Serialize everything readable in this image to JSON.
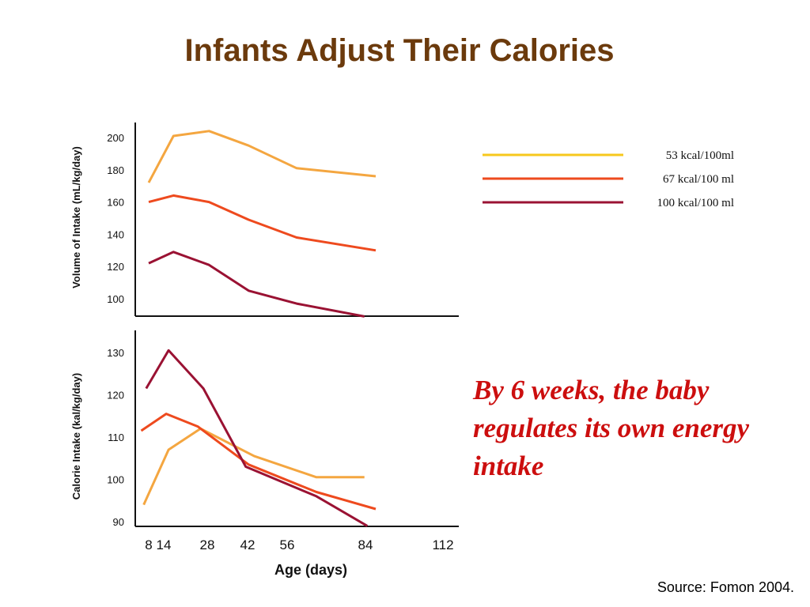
{
  "slide": {
    "title": "Infants Adjust Their Calories",
    "callout": "By 6 weeks, the baby regulates its own energy intake",
    "source": "Source: Fomon 2004."
  },
  "colors": {
    "title": "#6b3a0c",
    "callout": "#cc0e0e",
    "series_53": "#f4a640",
    "series_67": "#ee4a1e",
    "series_100": "#9a1233",
    "legend_53": "#f7c81c"
  },
  "legend": [
    {
      "label": "53 kcal/100ml",
      "color": "#f7c81c"
    },
    {
      "label": "67 kcal/100 ml",
      "color": "#ee4a1e"
    },
    {
      "label": "100 kcal/100 ml",
      "color": "#9a1233"
    }
  ],
  "x_axis": {
    "label": "Age (days)",
    "ticks": [
      "8",
      "14",
      "28",
      "42",
      "56",
      "84",
      "112"
    ]
  },
  "chart_data": [
    {
      "type": "line",
      "title": "",
      "ylabel": "Volume of Intake (mL/kg/day)",
      "yticks": [
        200,
        180,
        160,
        140,
        120,
        100
      ],
      "ylim": [
        90,
        210
      ],
      "grid": false,
      "series": [
        {
          "name": "53 kcal/100ml",
          "color": "#f4a640",
          "points": [
            [
              8,
              172
            ],
            [
              18,
              201
            ],
            [
              32,
              204
            ],
            [
              46,
              195
            ],
            [
              63,
              181
            ],
            [
              91,
              176
            ]
          ]
        },
        {
          "name": "67 kcal/100 ml",
          "color": "#ee4a1e",
          "points": [
            [
              8,
              160
            ],
            [
              18,
              164
            ],
            [
              32,
              160
            ],
            [
              46,
              149
            ],
            [
              63,
              138
            ],
            [
              91,
              130
            ]
          ]
        },
        {
          "name": "100 kcal/100 ml",
          "color": "#9a1233",
          "points": [
            [
              8,
              122
            ],
            [
              18,
              129
            ],
            [
              32,
              121
            ],
            [
              46,
              105
            ],
            [
              63,
              97
            ],
            [
              87,
              89
            ]
          ]
        }
      ]
    },
    {
      "type": "line",
      "title": "",
      "ylabel": "Calorie Intake (kal/kg/day)",
      "yticks": [
        130,
        120,
        110,
        100,
        90
      ],
      "ylim": [
        88,
        133
      ],
      "grid": false,
      "series": [
        {
          "name": "53 kcal/100ml",
          "color": "#f4a640",
          "points": [
            [
              6,
              94
            ],
            [
              16,
              107
            ],
            [
              29,
              112
            ],
            [
              48,
              105.5
            ],
            [
              70,
              100.5
            ],
            [
              87,
              100.5
            ]
          ]
        },
        {
          "name": "67 kcal/100 ml",
          "color": "#ee4a1e",
          "points": [
            [
              5,
              111.5
            ],
            [
              15,
              115.5
            ],
            [
              28,
              112.5
            ],
            [
              46,
              103.5
            ],
            [
              70,
              97
            ],
            [
              91,
              93
            ]
          ]
        },
        {
          "name": "100 kcal/100 ml",
          "color": "#9a1233",
          "points": [
            [
              7,
              121.5
            ],
            [
              16,
              130.5
            ],
            [
              30,
              121.5
            ],
            [
              45,
              103
            ],
            [
              70,
              96
            ],
            [
              88,
              89
            ]
          ]
        }
      ]
    }
  ]
}
